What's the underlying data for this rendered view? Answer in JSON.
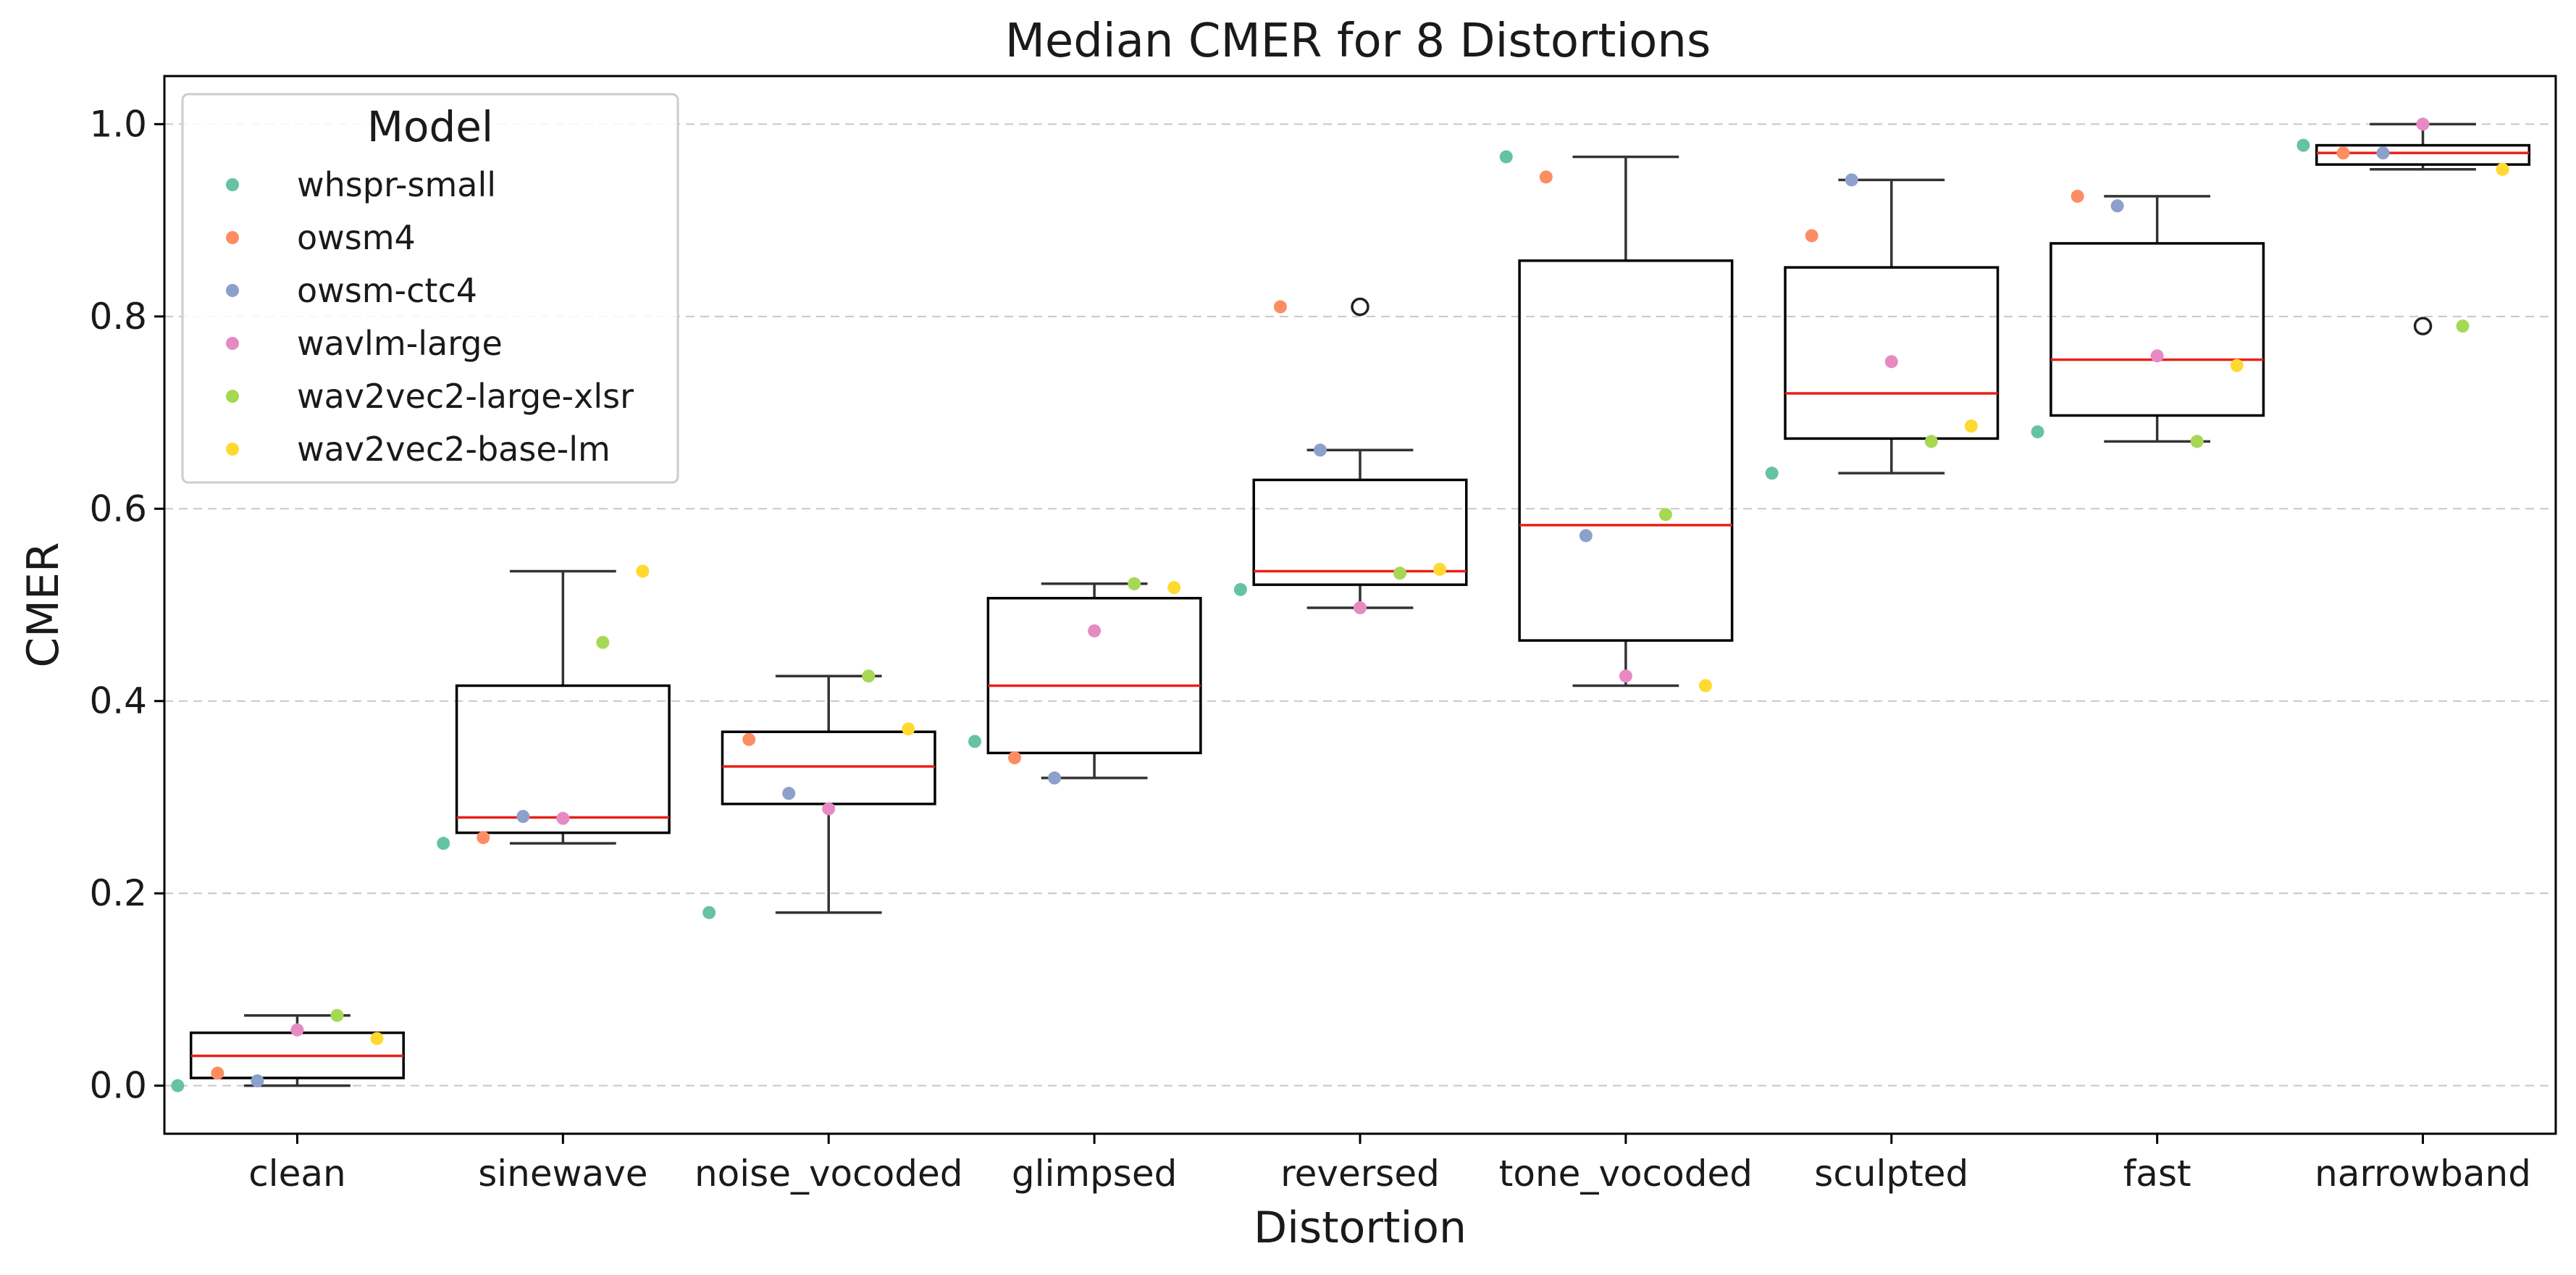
{
  "chart_data": {
    "type": "box",
    "title": "Median CMER for 8 Distortions",
    "xlabel": "Distortion",
    "ylabel": "CMER",
    "ylim": [
      -0.05,
      1.05
    ],
    "yticks": [
      "0.0",
      "0.2",
      "0.4",
      "0.6",
      "0.8",
      "1.0"
    ],
    "ytick_values": [
      0.0,
      0.2,
      0.4,
      0.6,
      0.8,
      1.0
    ],
    "grid": "horizontal dashed",
    "legend_position": "upper-left",
    "legend_title": "Model",
    "categories": [
      "clean",
      "sinewave",
      "noise_vocoded",
      "glimpsed",
      "reversed",
      "tone_vocoded",
      "sculpted",
      "fast",
      "narrowband"
    ],
    "boxes": [
      {
        "whisker_low": 0.0,
        "q1": 0.008,
        "median": 0.031,
        "q3": 0.055,
        "whisker_high": 0.073,
        "outliers": []
      },
      {
        "whisker_low": 0.252,
        "q1": 0.263,
        "median": 0.279,
        "q3": 0.416,
        "whisker_high": 0.535,
        "outliers": []
      },
      {
        "whisker_low": 0.18,
        "q1": 0.293,
        "median": 0.332,
        "q3": 0.368,
        "whisker_high": 0.426,
        "outliers": []
      },
      {
        "whisker_low": 0.32,
        "q1": 0.346,
        "median": 0.416,
        "q3": 0.507,
        "whisker_high": 0.522,
        "outliers": []
      },
      {
        "whisker_low": 0.497,
        "q1": 0.521,
        "median": 0.535,
        "q3": 0.63,
        "whisker_high": 0.661,
        "outliers": [
          0.81
        ]
      },
      {
        "whisker_low": 0.416,
        "q1": 0.463,
        "median": 0.583,
        "q3": 0.858,
        "whisker_high": 0.966,
        "outliers": []
      },
      {
        "whisker_low": 0.637,
        "q1": 0.673,
        "median": 0.72,
        "q3": 0.851,
        "whisker_high": 0.942,
        "outliers": []
      },
      {
        "whisker_low": 0.67,
        "q1": 0.697,
        "median": 0.755,
        "q3": 0.876,
        "whisker_high": 0.925,
        "outliers": []
      },
      {
        "whisker_low": 0.953,
        "q1": 0.958,
        "median": 0.97,
        "q3": 0.978,
        "whisker_high": 1.0,
        "outliers": [
          0.79
        ]
      }
    ],
    "series": [
      {
        "name": "whspr-small",
        "color": "#66c2a5",
        "values": [
          0.0,
          0.252,
          0.18,
          0.358,
          0.516,
          0.966,
          0.637,
          0.68,
          0.978
        ]
      },
      {
        "name": "owsm4",
        "color": "#fc8d62",
        "values": [
          0.013,
          0.258,
          0.36,
          0.341,
          0.81,
          0.945,
          0.884,
          0.925,
          0.97
        ]
      },
      {
        "name": "owsm-ctc4",
        "color": "#8da0cb",
        "values": [
          0.005,
          0.28,
          0.304,
          0.32,
          0.661,
          0.572,
          0.942,
          0.915,
          0.97
        ]
      },
      {
        "name": "wavlm-large",
        "color": "#e78ac3",
        "values": [
          0.058,
          0.278,
          0.288,
          0.473,
          0.497,
          0.426,
          0.753,
          0.759,
          1.0
        ]
      },
      {
        "name": "wav2vec2-large-xlsr",
        "color": "#a6d854",
        "values": [
          0.073,
          0.461,
          0.426,
          0.522,
          0.533,
          0.594,
          0.67,
          0.67,
          0.79
        ]
      },
      {
        "name": "wav2vec2-base-lm",
        "color": "#ffd92f",
        "values": [
          0.049,
          0.535,
          0.371,
          0.518,
          0.537,
          0.416,
          0.686,
          0.749,
          0.953
        ]
      }
    ]
  }
}
